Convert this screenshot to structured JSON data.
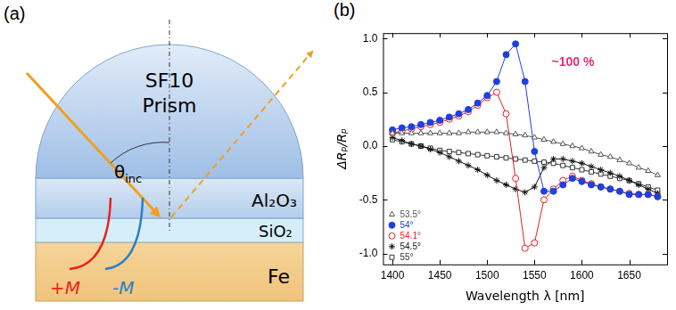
{
  "panel_a": {
    "label": "(a)",
    "prism": {
      "lines": [
        "SF10",
        "Prism"
      ]
    },
    "angle": {
      "symbol": "θ",
      "subscript": "inc"
    },
    "layers": [
      {
        "label": "Al₂O₃"
      },
      {
        "label": "SiO₂"
      },
      {
        "label": "Fe"
      }
    ],
    "magnetization": [
      {
        "label": "+M",
        "color": "#e8231e"
      },
      {
        "label": "-M",
        "color": "#2a7fc9"
      }
    ]
  },
  "panel_b": {
    "label": "(b)"
  },
  "chart_data": {
    "type": "line",
    "x_label": "Wavelength λ [nm]",
    "y_label": "ΔRₚ/Rₚ",
    "x": [
      1400,
      1410,
      1420,
      1430,
      1440,
      1450,
      1460,
      1470,
      1480,
      1490,
      1500,
      1510,
      1520,
      1530,
      1540,
      1550,
      1560,
      1570,
      1580,
      1590,
      1600,
      1610,
      1620,
      1630,
      1640,
      1650,
      1660,
      1670,
      1680
    ],
    "series": [
      {
        "name": "53.5°",
        "color": "#555555",
        "marker": "triangle-open",
        "values": [
          0.12,
          0.12,
          0.12,
          0.12,
          0.12,
          0.12,
          0.12,
          0.12,
          0.13,
          0.13,
          0.13,
          0.13,
          0.12,
          0.11,
          0.1,
          0.08,
          0.06,
          0.04,
          0.02,
          0.0,
          -0.02,
          -0.05,
          -0.08,
          -0.1,
          -0.13,
          -0.16,
          -0.2,
          -0.23,
          -0.27
        ]
      },
      {
        "name": "54°",
        "color": "#1f3fe0",
        "marker": "circle",
        "values": [
          0.15,
          0.17,
          0.18,
          0.2,
          0.22,
          0.24,
          0.27,
          0.3,
          0.34,
          0.4,
          0.47,
          0.6,
          0.85,
          0.95,
          0.6,
          -0.05,
          -0.42,
          -0.42,
          -0.36,
          -0.3,
          -0.33,
          -0.36,
          -0.38,
          -0.4,
          -0.42,
          -0.45,
          -0.45,
          -0.45,
          -0.47
        ]
      },
      {
        "name": "54.1°",
        "color": "#e02020",
        "marker": "circle-open",
        "values": [
          0.12,
          0.14,
          0.16,
          0.18,
          0.2,
          0.22,
          0.25,
          0.28,
          0.32,
          0.38,
          0.45,
          0.5,
          0.3,
          -0.3,
          -0.95,
          -0.9,
          -0.5,
          -0.4,
          -0.32,
          -0.28,
          -0.32,
          -0.35,
          -0.38,
          -0.4,
          -0.42,
          -0.44,
          -0.45,
          -0.45,
          -0.47
        ]
      },
      {
        "name": "54.5°",
        "color": "#111111",
        "marker": "star",
        "values": [
          0.08,
          0.05,
          0.02,
          0.0,
          -0.03,
          -0.06,
          -0.1,
          -0.14,
          -0.18,
          -0.22,
          -0.27,
          -0.32,
          -0.36,
          -0.4,
          -0.43,
          -0.38,
          -0.2,
          -0.12,
          -0.12,
          -0.14,
          -0.16,
          -0.19,
          -0.22,
          -0.25,
          -0.28,
          -0.32,
          -0.36,
          -0.4,
          -0.44
        ]
      },
      {
        "name": "55°",
        "color": "#333333",
        "marker": "square-open",
        "values": [
          0.06,
          0.04,
          0.02,
          0.0,
          -0.02,
          -0.04,
          -0.05,
          -0.06,
          -0.07,
          -0.08,
          -0.09,
          -0.1,
          -0.11,
          -0.12,
          -0.13,
          -0.14,
          -0.15,
          -0.16,
          -0.18,
          -0.2,
          -0.22,
          -0.24,
          -0.26,
          -0.28,
          -0.3,
          -0.32,
          -0.35,
          -0.38,
          -0.41
        ]
      }
    ],
    "xlim": [
      1390,
      1690
    ],
    "xticks": [
      1400,
      1450,
      1500,
      1550,
      1600,
      1650
    ],
    "ylim": [
      -1.1,
      1.05
    ],
    "yticks": [
      {
        "value": -1,
        "label": "-1.0"
      },
      {
        "value": -0.5,
        "label": "-0.5"
      },
      {
        "value": 0,
        "label": "0.0"
      },
      {
        "value": 0.5,
        "label": "0.5"
      },
      {
        "value": 1,
        "label": "1.0"
      }
    ],
    "grid": false,
    "legend": "lower left",
    "annotations": [
      {
        "text": "~100 %",
        "x": 1568,
        "y": 0.78,
        "color": "#e0307a"
      }
    ]
  }
}
